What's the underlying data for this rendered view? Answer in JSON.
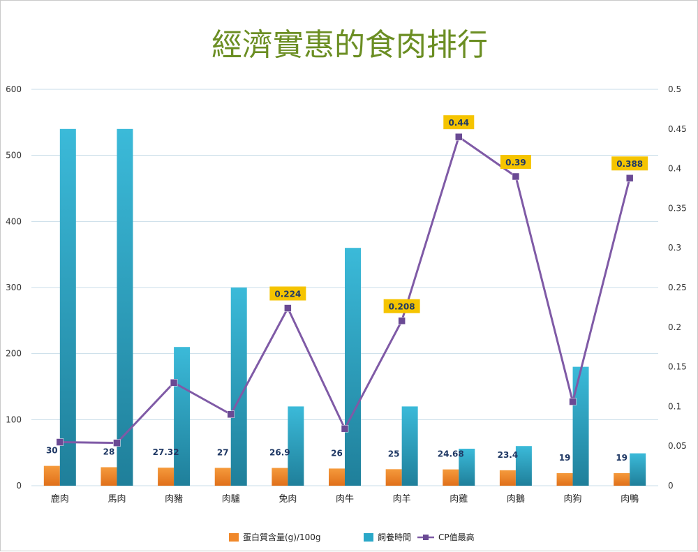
{
  "chart_data": {
    "type": "bar",
    "title": "經濟實惠的食肉排行",
    "categories": [
      "鹿肉",
      "馬肉",
      "肉豬",
      "肉驢",
      "免肉",
      "肉牛",
      "肉羊",
      "肉雞",
      "肉鵝",
      "肉狗",
      "肉鴨"
    ],
    "series": [
      {
        "name": "蛋白質含量(g)/100g",
        "kind": "bar",
        "axis": "left",
        "color": "#f0882a",
        "values": [
          30,
          28,
          27.32,
          27,
          26.9,
          26,
          25,
          24.68,
          23.4,
          19,
          19
        ],
        "labels": [
          "30",
          "28",
          "27.32",
          "27",
          "26.9",
          "26",
          "25",
          "24.68",
          "23.4",
          "19",
          "19"
        ]
      },
      {
        "name": "飼養時間",
        "kind": "bar",
        "axis": "left",
        "color": "#2aa8c8",
        "values": [
          540,
          540,
          210,
          300,
          120,
          360,
          120,
          56,
          60,
          180,
          49
        ]
      },
      {
        "name": "CP值最高",
        "kind": "line",
        "axis": "right",
        "color": "#7f5aa6",
        "values": [
          0.055,
          0.054,
          0.13,
          0.09,
          0.224,
          0.072,
          0.208,
          0.44,
          0.39,
          0.106,
          0.388
        ],
        "callouts": [
          {
            "index": 4,
            "label": "0.224"
          },
          {
            "index": 6,
            "label": "0.208"
          },
          {
            "index": 7,
            "label": "0.44"
          },
          {
            "index": 8,
            "label": "0.39"
          },
          {
            "index": 10,
            "label": "0.388"
          }
        ]
      }
    ],
    "y_left": {
      "min": 0,
      "max": 600,
      "ticks": [
        "0",
        "100",
        "200",
        "300",
        "400",
        "500",
        "600"
      ]
    },
    "y_right": {
      "min": 0,
      "max": 0.5,
      "ticks": [
        "0",
        "0.05",
        "0.1",
        "0.15",
        "0.2",
        "0.25",
        "0.3",
        "0.35",
        "0.4",
        "0.45",
        "0.5"
      ]
    },
    "grid": true,
    "legend_position": "bottom",
    "title_color": "#6b8e23",
    "callout_color": "#f5c400"
  }
}
